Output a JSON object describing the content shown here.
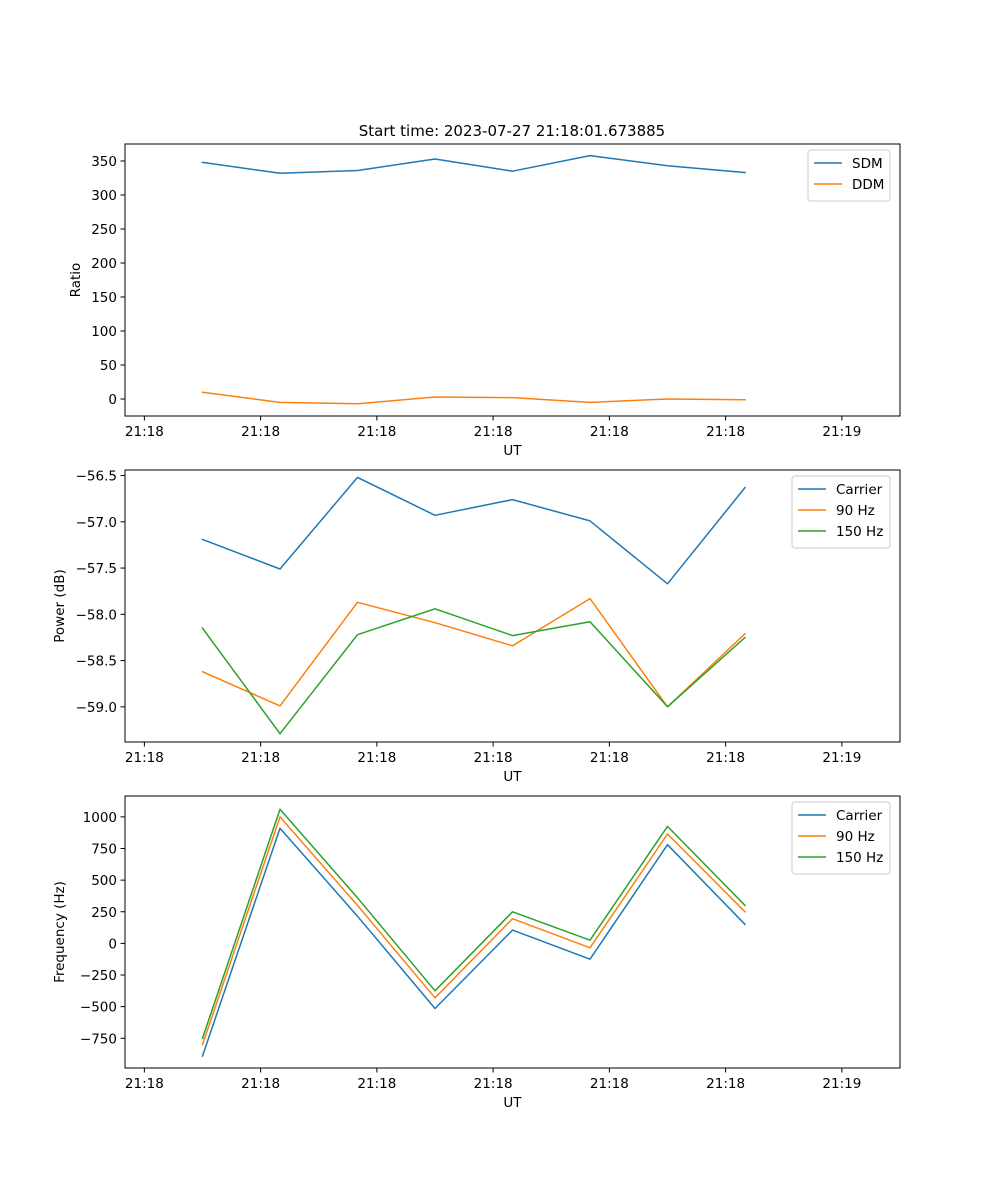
{
  "figure_title": "Start time: 2023-07-27 21:18:01.673885",
  "colors": {
    "blue": "#1f77b4",
    "orange": "#ff7f0e",
    "green": "#2ca02c"
  },
  "chart_data": [
    {
      "type": "line",
      "title": "Start time: 2023-07-27 21:18:01.673885",
      "xlabel": "UT",
      "ylabel": "Ratio",
      "x": [
        1,
        2,
        3,
        4,
        5,
        6,
        7,
        8
      ],
      "xlim": [
        0,
        10
      ],
      "xticks": [
        0.25,
        1.75,
        3.25,
        4.75,
        6.25,
        7.75,
        9.25
      ],
      "xtick_labels": [
        "21:18",
        "21:18",
        "21:18",
        "21:18",
        "21:18",
        "21:18",
        "21:19"
      ],
      "ylim": [
        -25,
        375
      ],
      "yticks": [
        0,
        50,
        100,
        150,
        200,
        250,
        300,
        350
      ],
      "ytick_labels": [
        "0",
        "50",
        "100",
        "150",
        "200",
        "250",
        "300",
        "350"
      ],
      "legend_position": "top-right",
      "series": [
        {
          "name": "SDM",
          "color": "#1f77b4",
          "values": [
            348,
            332,
            336,
            353,
            335,
            358,
            343,
            333
          ]
        },
        {
          "name": "DDM",
          "color": "#ff7f0e",
          "values": [
            10,
            -5,
            -7,
            3,
            2,
            -5,
            0,
            -1
          ]
        }
      ]
    },
    {
      "type": "line",
      "title": "",
      "xlabel": "UT",
      "ylabel": "Power (dB)",
      "x": [
        1,
        2,
        3,
        4,
        5,
        6,
        7,
        8
      ],
      "xlim": [
        0,
        10
      ],
      "xticks": [
        0.25,
        1.75,
        3.25,
        4.75,
        6.25,
        7.75,
        9.25
      ],
      "xtick_labels": [
        "21:18",
        "21:18",
        "21:18",
        "21:18",
        "21:18",
        "21:18",
        "21:19"
      ],
      "ylim": [
        -59.38,
        -56.44
      ],
      "yticks": [
        -59.0,
        -58.5,
        -58.0,
        -57.5,
        -57.0,
        -56.5
      ],
      "ytick_labels": [
        "−59.0",
        "−58.5",
        "−58.0",
        "−57.5",
        "−57.0",
        "−56.5"
      ],
      "legend_position": "top-right",
      "series": [
        {
          "name": "Carrier",
          "color": "#1f77b4",
          "values": [
            -57.19,
            -57.51,
            -56.52,
            -56.93,
            -56.76,
            -56.99,
            -57.67,
            -56.63
          ]
        },
        {
          "name": "90 Hz",
          "color": "#ff7f0e",
          "values": [
            -58.62,
            -58.99,
            -57.87,
            -58.09,
            -58.34,
            -57.83,
            -59.0,
            -58.21
          ]
        },
        {
          "name": "150 Hz",
          "color": "#2ca02c",
          "values": [
            -58.15,
            -59.29,
            -58.22,
            -57.94,
            -58.23,
            -58.08,
            -59.0,
            -58.25
          ]
        }
      ]
    },
    {
      "type": "line",
      "title": "",
      "xlabel": "UT",
      "ylabel": "Frequency (Hz)",
      "x": [
        1,
        2,
        3,
        4,
        5,
        6,
        7,
        8
      ],
      "xlim": [
        0,
        10
      ],
      "xticks": [
        0.25,
        1.75,
        3.25,
        4.75,
        6.25,
        7.75,
        9.25
      ],
      "xtick_labels": [
        "21:18",
        "21:18",
        "21:18",
        "21:18",
        "21:18",
        "21:18",
        "21:19"
      ],
      "ylim": [
        -985,
        1165
      ],
      "yticks": [
        -750,
        -500,
        -250,
        0,
        250,
        500,
        750,
        1000
      ],
      "ytick_labels": [
        "−750",
        "−500",
        "−250",
        "0",
        "250",
        "500",
        "750",
        "1000"
      ],
      "legend_position": "top-right",
      "series": [
        {
          "name": "Carrier",
          "color": "#1f77b4",
          "values": [
            -890,
            910,
            215,
            -515,
            105,
            -125,
            780,
            150
          ]
        },
        {
          "name": "90 Hz",
          "color": "#ff7f0e",
          "values": [
            -800,
            1000,
            300,
            -430,
            195,
            -35,
            865,
            250
          ]
        },
        {
          "name": "150 Hz",
          "color": "#2ca02c",
          "values": [
            -750,
            1060,
            360,
            -375,
            250,
            25,
            925,
            300
          ]
        }
      ]
    }
  ]
}
